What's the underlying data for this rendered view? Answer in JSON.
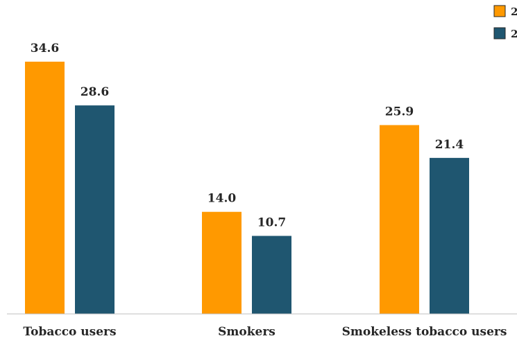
{
  "chart_data": {
    "type": "bar",
    "categories": [
      "Tobacco users",
      "Smokers",
      "Smokeless tobacco users"
    ],
    "series": [
      {
        "name": "2",
        "color": "#FF9900",
        "values": [
          34.6,
          14.0,
          25.9
        ]
      },
      {
        "name": "2",
        "color": "#1F5670",
        "values": [
          28.6,
          10.7,
          21.4
        ]
      }
    ],
    "data_labels": [
      [
        "34.6",
        "14.0",
        "25.9"
      ],
      [
        "28.6",
        "10.7",
        "21.4"
      ]
    ],
    "ylim": [
      0,
      40
    ],
    "grid": false,
    "legend": "top-right",
    "title": "",
    "xlabel": "",
    "ylabel": ""
  }
}
